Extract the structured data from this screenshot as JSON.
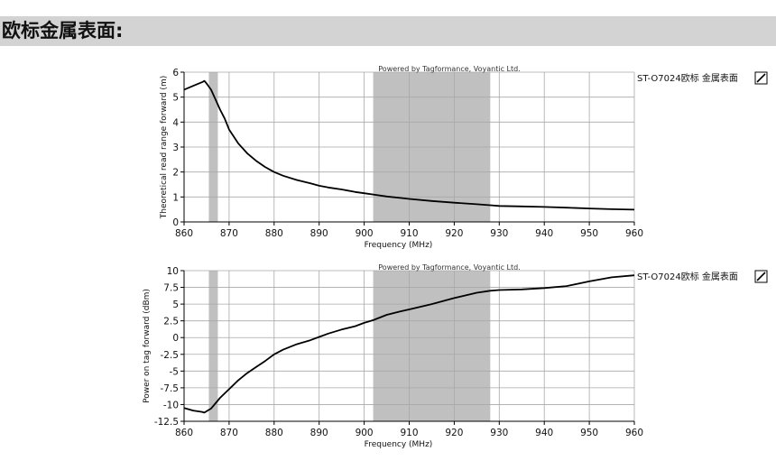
{
  "header": {
    "title": "欧标金属表面:"
  },
  "chart_data": [
    {
      "type": "line",
      "watermark": "Powered by Tagformance, Voyantic Ltd.",
      "xlabel": "Frequency (MHz)",
      "ylabel": "Theoretical read range forward (m)",
      "xlim": [
        860,
        960
      ],
      "ylim": [
        0,
        6
      ],
      "xticks": [
        860,
        870,
        880,
        890,
        900,
        910,
        920,
        930,
        940,
        950,
        960
      ],
      "yticks": [
        0,
        1,
        2,
        3,
        4,
        5,
        6
      ],
      "grid": true,
      "legend_placement": "right",
      "shaded_bands": [
        [
          865.5,
          867.5
        ],
        [
          902,
          928
        ]
      ],
      "series": [
        {
          "name": "ST-O7024欧标 金属表面",
          "color": "#000000",
          "x": [
            860,
            862,
            864,
            864.5,
            865,
            866,
            867,
            868,
            869,
            870,
            872,
            874,
            876,
            878,
            880,
            882,
            885,
            888,
            890,
            892,
            895,
            898,
            900,
            902,
            905,
            908,
            910,
            915,
            920,
            925,
            928,
            930,
            935,
            940,
            945,
            950,
            955,
            960
          ],
          "y": [
            5.3,
            5.45,
            5.6,
            5.65,
            5.55,
            5.3,
            4.9,
            4.5,
            4.15,
            3.7,
            3.15,
            2.75,
            2.45,
            2.2,
            2.0,
            1.85,
            1.68,
            1.55,
            1.45,
            1.38,
            1.3,
            1.2,
            1.15,
            1.1,
            1.02,
            0.96,
            0.92,
            0.84,
            0.77,
            0.71,
            0.67,
            0.64,
            0.62,
            0.6,
            0.57,
            0.54,
            0.51,
            0.49
          ]
        }
      ]
    },
    {
      "type": "line",
      "watermark": "Powered by Tagformance, Voyantic Ltd.",
      "xlabel": "Frequency (MHz)",
      "ylabel": "Power on tag forward (dBm)",
      "xlim": [
        860,
        960
      ],
      "ylim": [
        -12.5,
        10
      ],
      "xticks": [
        860,
        870,
        880,
        890,
        900,
        910,
        920,
        930,
        940,
        950,
        960
      ],
      "yticks": [
        -12.5,
        -10,
        -7.5,
        -5,
        -2.5,
        0,
        2.5,
        5,
        7.5,
        10
      ],
      "grid": true,
      "legend_placement": "right",
      "shaded_bands": [
        [
          865.5,
          867.5
        ],
        [
          902,
          928
        ]
      ],
      "series": [
        {
          "name": "ST-O7024欧标 金属表面",
          "color": "#000000",
          "x": [
            860,
            862,
            864,
            864.5,
            865,
            866,
            867,
            868,
            870,
            872,
            874,
            876,
            878,
            880,
            882,
            885,
            888,
            890,
            892,
            895,
            898,
            900,
            902,
            905,
            908,
            910,
            915,
            920,
            925,
            928,
            930,
            935,
            940,
            945,
            950,
            955,
            960
          ],
          "y": [
            -10.5,
            -10.9,
            -11.1,
            -11.2,
            -11.0,
            -10.6,
            -9.8,
            -9.0,
            -7.7,
            -6.4,
            -5.3,
            -4.4,
            -3.5,
            -2.5,
            -1.8,
            -1.0,
            -0.4,
            0.1,
            0.6,
            1.2,
            1.7,
            2.2,
            2.6,
            3.4,
            3.9,
            4.2,
            5.0,
            5.9,
            6.7,
            7.0,
            7.1,
            7.2,
            7.4,
            7.7,
            8.4,
            9.0,
            9.3
          ]
        }
      ]
    }
  ]
}
